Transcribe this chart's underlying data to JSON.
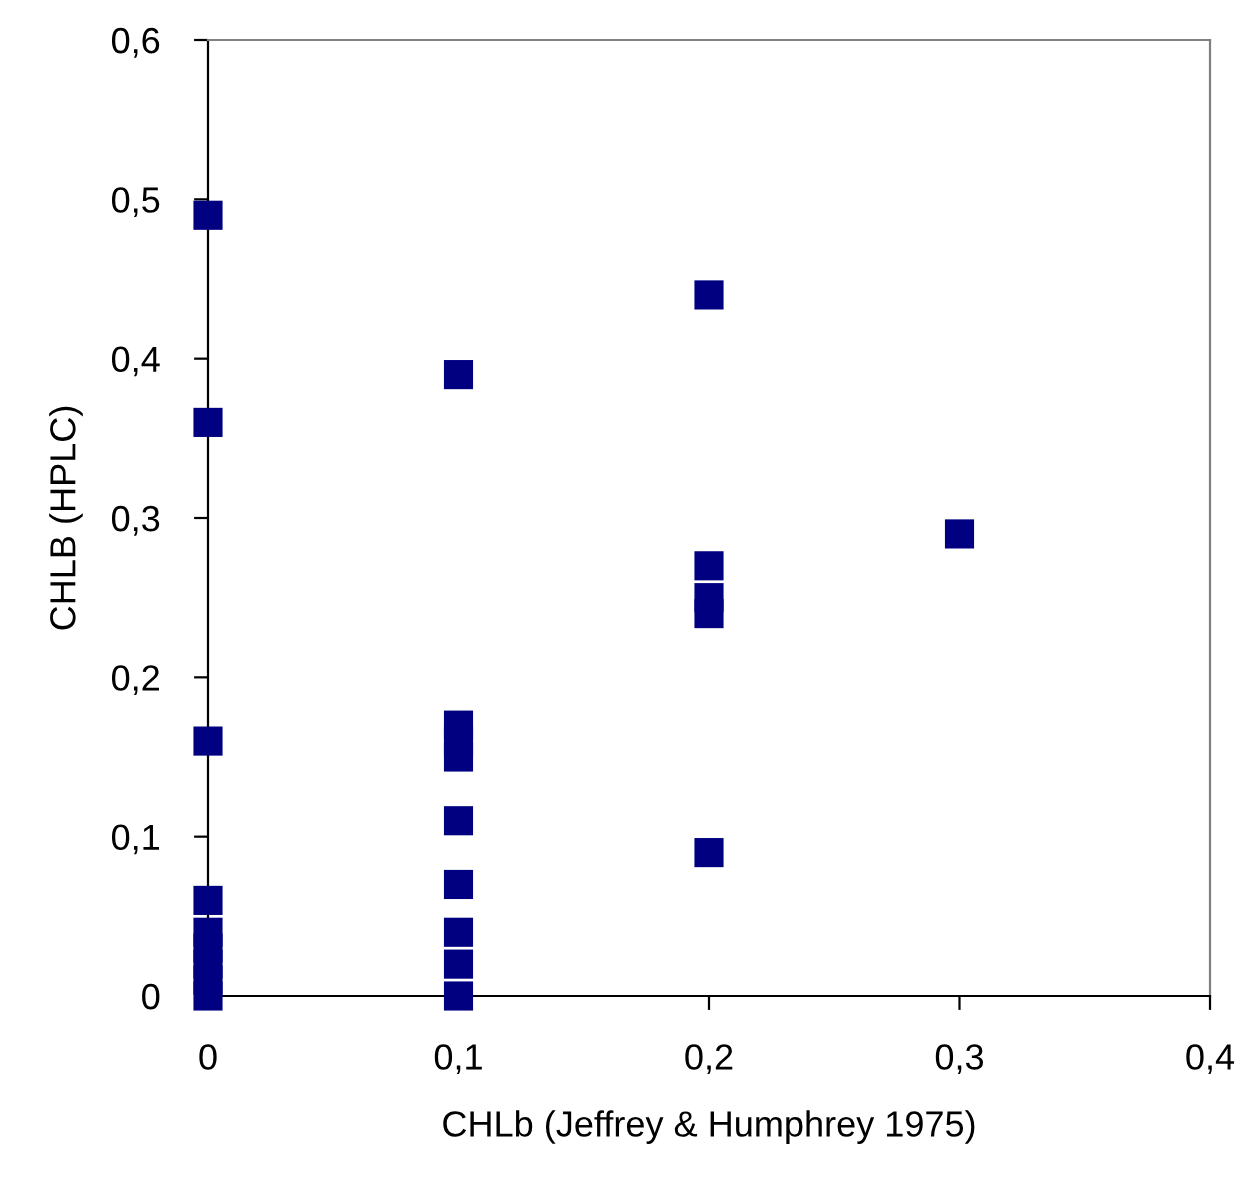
{
  "chart_data": {
    "type": "scatter",
    "xlabel": "CHLb (Jeffrey & Humphrey 1975)",
    "ylabel": "CHLB (HPLC)",
    "x": [
      0,
      0,
      0,
      0,
      0,
      0,
      0,
      0,
      0,
      0.1,
      0.1,
      0.1,
      0.1,
      0.1,
      0.1,
      0.1,
      0.1,
      0.1,
      0.2,
      0.2,
      0.2,
      0.2,
      0.2,
      0.3
    ],
    "values": [
      0.49,
      0.36,
      0.16,
      0.06,
      0.04,
      0.03,
      0.02,
      0.01,
      0,
      0.39,
      0.17,
      0.16,
      0.15,
      0.11,
      0.07,
      0.04,
      0.02,
      0,
      0.44,
      0.27,
      0.25,
      0.24,
      0.09,
      0.29
    ],
    "color": "#000080",
    "marker": "square",
    "grid": false,
    "legend": false,
    "xlim": [
      0,
      0.4
    ],
    "ylim": [
      0,
      0.6
    ],
    "xticks": [
      {
        "value": 0,
        "label": "0"
      },
      {
        "value": 0.1,
        "label": "0,1"
      },
      {
        "value": 0.2,
        "label": "0,2"
      },
      {
        "value": 0.3,
        "label": "0,3"
      },
      {
        "value": 0.4,
        "label": "0,4"
      }
    ],
    "yticks": [
      {
        "value": 0,
        "label": "0"
      },
      {
        "value": 0.1,
        "label": "0,1"
      },
      {
        "value": 0.2,
        "label": "0,2"
      },
      {
        "value": 0.3,
        "label": "0,3"
      },
      {
        "value": 0.4,
        "label": "0,4"
      },
      {
        "value": 0.5,
        "label": "0,5"
      },
      {
        "value": 0.6,
        "label": "0,6"
      }
    ]
  }
}
